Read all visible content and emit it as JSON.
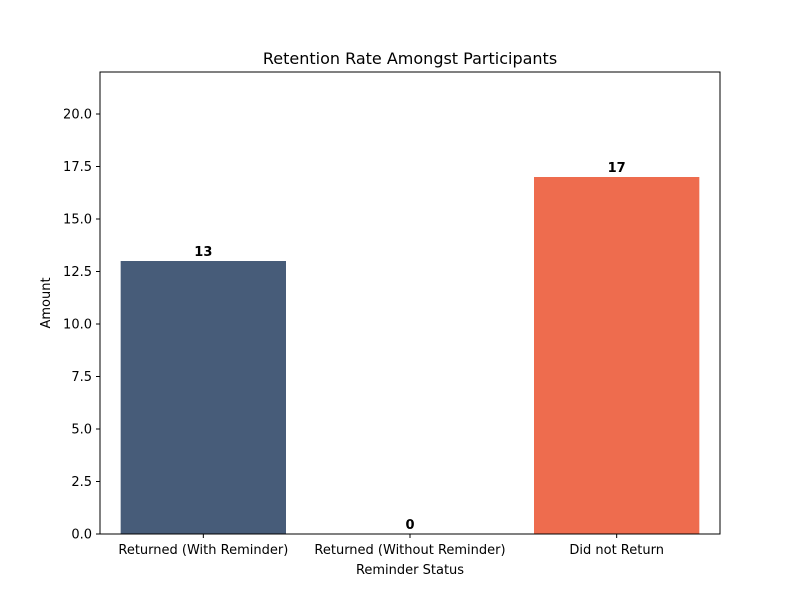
{
  "chart_data": {
    "type": "bar",
    "title": "Retention Rate Amongst Participants",
    "xlabel": "Reminder Status",
    "ylabel": "Amount",
    "categories": [
      "Returned (With Reminder)",
      "Returned (Without Reminder)",
      "Did not Return"
    ],
    "values": [
      13,
      0,
      17
    ],
    "data_labels": [
      "13",
      "0",
      "17"
    ],
    "colors": [
      "#475c79",
      "#475c79",
      "#ee6c4e"
    ],
    "ylim": [
      0,
      22
    ],
    "yticks": [
      0.0,
      2.5,
      5.0,
      7.5,
      10.0,
      12.5,
      15.0,
      17.5,
      20.0
    ],
    "ytick_labels": [
      "0.0",
      "2.5",
      "5.0",
      "7.5",
      "10.0",
      "12.5",
      "15.0",
      "17.5",
      "20.0"
    ],
    "grid": false,
    "legend": "none"
  }
}
